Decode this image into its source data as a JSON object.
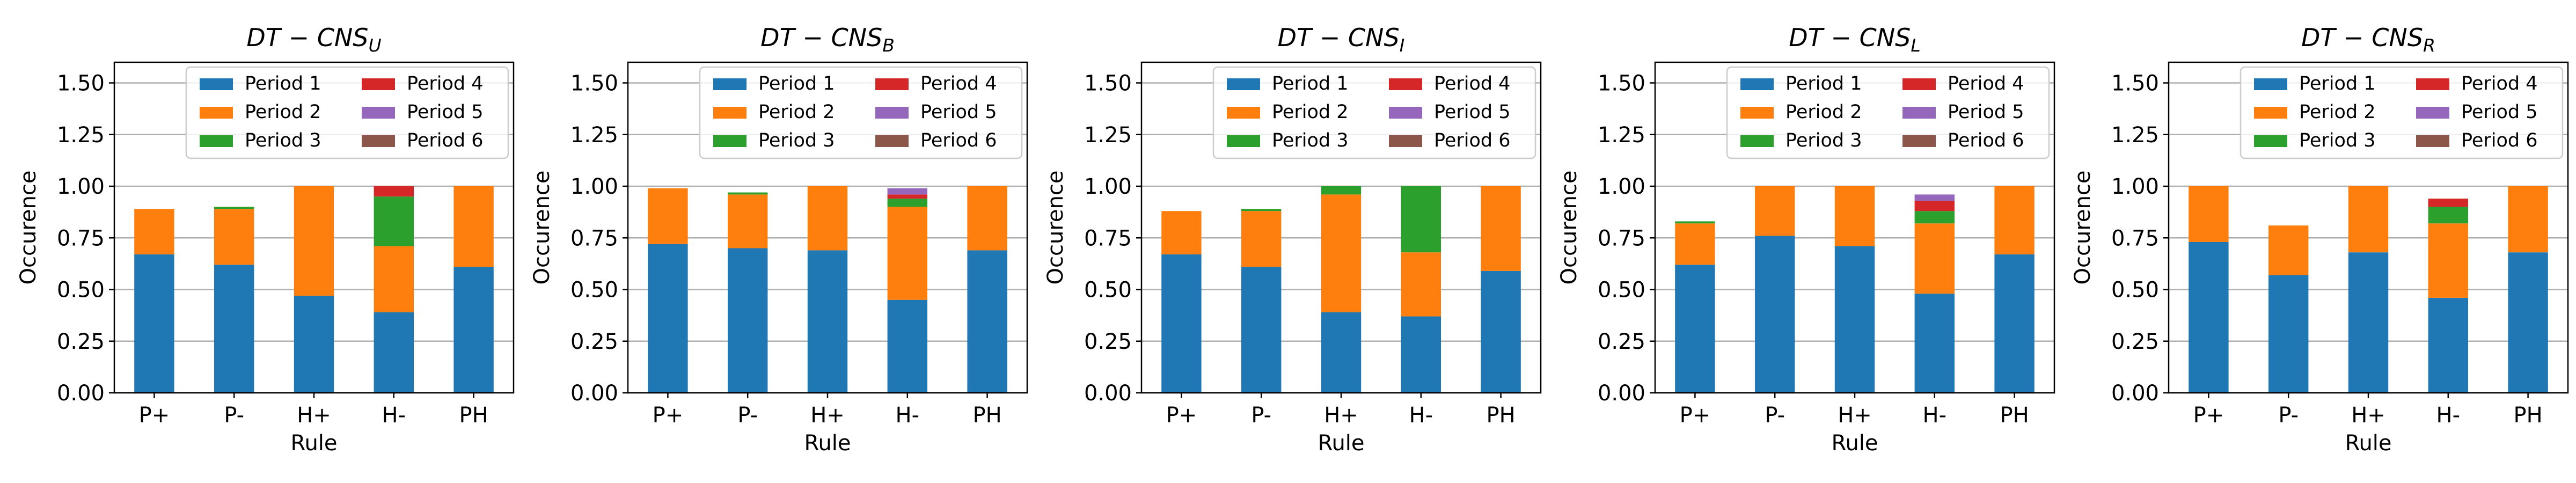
{
  "colors": {
    "Period 1": "#1f77b4",
    "Period 2": "#ff7f0e",
    "Period 3": "#2ca02c",
    "Period 4": "#d62728",
    "Period 5": "#9467bd",
    "Period 6": "#8c564b"
  },
  "chart_data": [
    {
      "type": "bar",
      "stacked": true,
      "title": "DT − CNS",
      "title_subscript": "U",
      "xlabel": "Rule",
      "ylabel": "Occurence",
      "ylim": [
        0,
        1.6
      ],
      "yticks": [
        "0.00",
        "0.25",
        "0.50",
        "0.75",
        "1.00",
        "1.25",
        "1.50"
      ],
      "grid": true,
      "legend_position": "top-right",
      "categories": [
        "P+",
        "P-",
        "H+",
        "H-",
        "PH"
      ],
      "series": [
        {
          "name": "Period 1",
          "values": [
            0.67,
            0.62,
            0.47,
            0.39,
            0.61
          ]
        },
        {
          "name": "Period 2",
          "values": [
            0.22,
            0.27,
            0.53,
            0.32,
            0.39
          ]
        },
        {
          "name": "Period 3",
          "values": [
            0.0,
            0.01,
            0.0,
            0.24,
            0.0
          ]
        },
        {
          "name": "Period 4",
          "values": [
            0.0,
            0.0,
            0.0,
            0.05,
            0.0
          ]
        },
        {
          "name": "Period 5",
          "values": [
            0.0,
            0.0,
            0.0,
            0.0,
            0.0
          ]
        },
        {
          "name": "Period 6",
          "values": [
            0.0,
            0.0,
            0.0,
            0.0,
            0.0
          ]
        }
      ]
    },
    {
      "type": "bar",
      "stacked": true,
      "title": "DT − CNS",
      "title_subscript": "B",
      "xlabel": "Rule",
      "ylabel": "Occurence",
      "ylim": [
        0,
        1.6
      ],
      "yticks": [
        "0.00",
        "0.25",
        "0.50",
        "0.75",
        "1.00",
        "1.25",
        "1.50"
      ],
      "grid": true,
      "legend_position": "top-right",
      "categories": [
        "P+",
        "P-",
        "H+",
        "H-",
        "PH"
      ],
      "series": [
        {
          "name": "Period 1",
          "values": [
            0.72,
            0.7,
            0.69,
            0.45,
            0.69
          ]
        },
        {
          "name": "Period 2",
          "values": [
            0.27,
            0.26,
            0.31,
            0.45,
            0.31
          ]
        },
        {
          "name": "Period 3",
          "values": [
            0.0,
            0.01,
            0.0,
            0.04,
            0.0
          ]
        },
        {
          "name": "Period 4",
          "values": [
            0.0,
            0.0,
            0.0,
            0.02,
            0.0
          ]
        },
        {
          "name": "Period 5",
          "values": [
            0.0,
            0.0,
            0.0,
            0.03,
            0.0
          ]
        },
        {
          "name": "Period 6",
          "values": [
            0.0,
            0.0,
            0.0,
            0.0,
            0.0
          ]
        }
      ]
    },
    {
      "type": "bar",
      "stacked": true,
      "title": "DT − CNS",
      "title_subscript": "I",
      "xlabel": "Rule",
      "ylabel": "Occurence",
      "ylim": [
        0,
        1.6
      ],
      "yticks": [
        "0.00",
        "0.25",
        "0.50",
        "0.75",
        "1.00",
        "1.25",
        "1.50"
      ],
      "grid": true,
      "legend_position": "top-right",
      "categories": [
        "P+",
        "P-",
        "H+",
        "H-",
        "PH"
      ],
      "series": [
        {
          "name": "Period 1",
          "values": [
            0.67,
            0.61,
            0.39,
            0.37,
            0.59
          ]
        },
        {
          "name": "Period 2",
          "values": [
            0.21,
            0.27,
            0.57,
            0.31,
            0.41
          ]
        },
        {
          "name": "Period 3",
          "values": [
            0.0,
            0.01,
            0.04,
            0.32,
            0.0
          ]
        },
        {
          "name": "Period 4",
          "values": [
            0.0,
            0.0,
            0.0,
            0.0,
            0.0
          ]
        },
        {
          "name": "Period 5",
          "values": [
            0.0,
            0.0,
            0.0,
            0.0,
            0.0
          ]
        },
        {
          "name": "Period 6",
          "values": [
            0.0,
            0.0,
            0.0,
            0.0,
            0.0
          ]
        }
      ]
    },
    {
      "type": "bar",
      "stacked": true,
      "title": "DT − CNS",
      "title_subscript": "L",
      "xlabel": "Rule",
      "ylabel": "Occurence",
      "ylim": [
        0,
        1.6
      ],
      "yticks": [
        "0.00",
        "0.25",
        "0.50",
        "0.75",
        "1.00",
        "1.25",
        "1.50"
      ],
      "grid": true,
      "legend_position": "top-right",
      "categories": [
        "P+",
        "P-",
        "H+",
        "H-",
        "PH"
      ],
      "series": [
        {
          "name": "Period 1",
          "values": [
            0.62,
            0.76,
            0.71,
            0.48,
            0.67
          ]
        },
        {
          "name": "Period 2",
          "values": [
            0.2,
            0.24,
            0.29,
            0.34,
            0.33
          ]
        },
        {
          "name": "Period 3",
          "values": [
            0.01,
            0.0,
            0.0,
            0.06,
            0.0
          ]
        },
        {
          "name": "Period 4",
          "values": [
            0.0,
            0.0,
            0.0,
            0.05,
            0.0
          ]
        },
        {
          "name": "Period 5",
          "values": [
            0.0,
            0.0,
            0.0,
            0.03,
            0.0
          ]
        },
        {
          "name": "Period 6",
          "values": [
            0.0,
            0.0,
            0.0,
            0.0,
            0.0
          ]
        }
      ]
    },
    {
      "type": "bar",
      "stacked": true,
      "title": "DT − CNS",
      "title_subscript": "R",
      "xlabel": "Rule",
      "ylabel": "Occurence",
      "ylim": [
        0,
        1.6
      ],
      "yticks": [
        "0.00",
        "0.25",
        "0.50",
        "0.75",
        "1.00",
        "1.25",
        "1.50"
      ],
      "grid": true,
      "legend_position": "top-right",
      "categories": [
        "P+",
        "P-",
        "H+",
        "H-",
        "PH"
      ],
      "series": [
        {
          "name": "Period 1",
          "values": [
            0.73,
            0.57,
            0.68,
            0.46,
            0.68
          ]
        },
        {
          "name": "Period 2",
          "values": [
            0.27,
            0.24,
            0.32,
            0.36,
            0.32
          ]
        },
        {
          "name": "Period 3",
          "values": [
            0.0,
            0.0,
            0.0,
            0.08,
            0.0
          ]
        },
        {
          "name": "Period 4",
          "values": [
            0.0,
            0.0,
            0.0,
            0.04,
            0.0
          ]
        },
        {
          "name": "Period 5",
          "values": [
            0.0,
            0.0,
            0.0,
            0.0,
            0.0
          ]
        },
        {
          "name": "Period 6",
          "values": [
            0.0,
            0.0,
            0.0,
            0.0,
            0.0
          ]
        }
      ]
    }
  ]
}
